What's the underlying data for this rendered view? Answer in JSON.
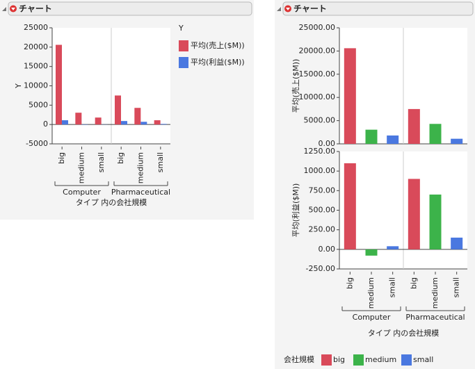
{
  "panels": [
    {
      "header": "チャート"
    },
    {
      "header": "チャート"
    }
  ],
  "chart_data": [
    {
      "type": "bar",
      "ylabel": "Y",
      "xlabel": "タイプ 内の会社規模",
      "legend_title": "Y",
      "groups": [
        "Computer",
        "Pharmaceutical"
      ],
      "categories": [
        "big",
        "medium",
        "small",
        "big",
        "medium",
        "small"
      ],
      "ylim": [
        -5000,
        25000
      ],
      "yticks": [
        -5000,
        0,
        5000,
        10000,
        15000,
        20000,
        25000
      ],
      "series": [
        {
          "name": "平均(売上($M))",
          "color": "#d94a5a",
          "values": [
            20600,
            3050,
            1800,
            7500,
            4300,
            1100
          ]
        },
        {
          "name": "平均(利益($M))",
          "color": "#4a78e0",
          "values": [
            1100,
            -80,
            40,
            900,
            700,
            150
          ]
        }
      ]
    },
    {
      "type": "bar_panels",
      "xlabel": "タイプ 内の会社規模",
      "legend_title": "会社規模",
      "legend": [
        "big",
        "medium",
        "small"
      ],
      "colors": [
        "#d94a5a",
        "#3cb34a",
        "#4a78e0"
      ],
      "groups": [
        "Computer",
        "Pharmaceutical"
      ],
      "categories": [
        "big",
        "medium",
        "small",
        "big",
        "medium",
        "small"
      ],
      "series": [
        {
          "name": "平均(売上($M))",
          "values": [
            20600,
            3050,
            1800,
            7500,
            4300,
            1100
          ],
          "ylim": [
            0,
            25000
          ],
          "yticks": [
            {
              "value": 0,
              "label": "0.00"
            },
            {
              "value": 5000,
              "label": "5000.00"
            },
            {
              "value": 10000,
              "label": "10000.00"
            },
            {
              "value": 15000,
              "label": "15000.00"
            },
            {
              "value": 20000,
              "label": "20000.00"
            },
            {
              "value": 25000,
              "label": "25000.00"
            }
          ]
        },
        {
          "name": "平均(利益($M))",
          "values": [
            1100,
            -80,
            40,
            900,
            700,
            150
          ],
          "ylim": [
            -250,
            1250
          ],
          "yticks": [
            {
              "value": -250,
              "label": "-250.00"
            },
            {
              "value": 0,
              "label": "0.00"
            },
            {
              "value": 250,
              "label": "250.00"
            },
            {
              "value": 500,
              "label": "500.00"
            },
            {
              "value": 750,
              "label": "750.00"
            },
            {
              "value": 1000,
              "label": "1000.00"
            },
            {
              "value": 1250,
              "label": "1250.00"
            }
          ]
        }
      ]
    }
  ]
}
